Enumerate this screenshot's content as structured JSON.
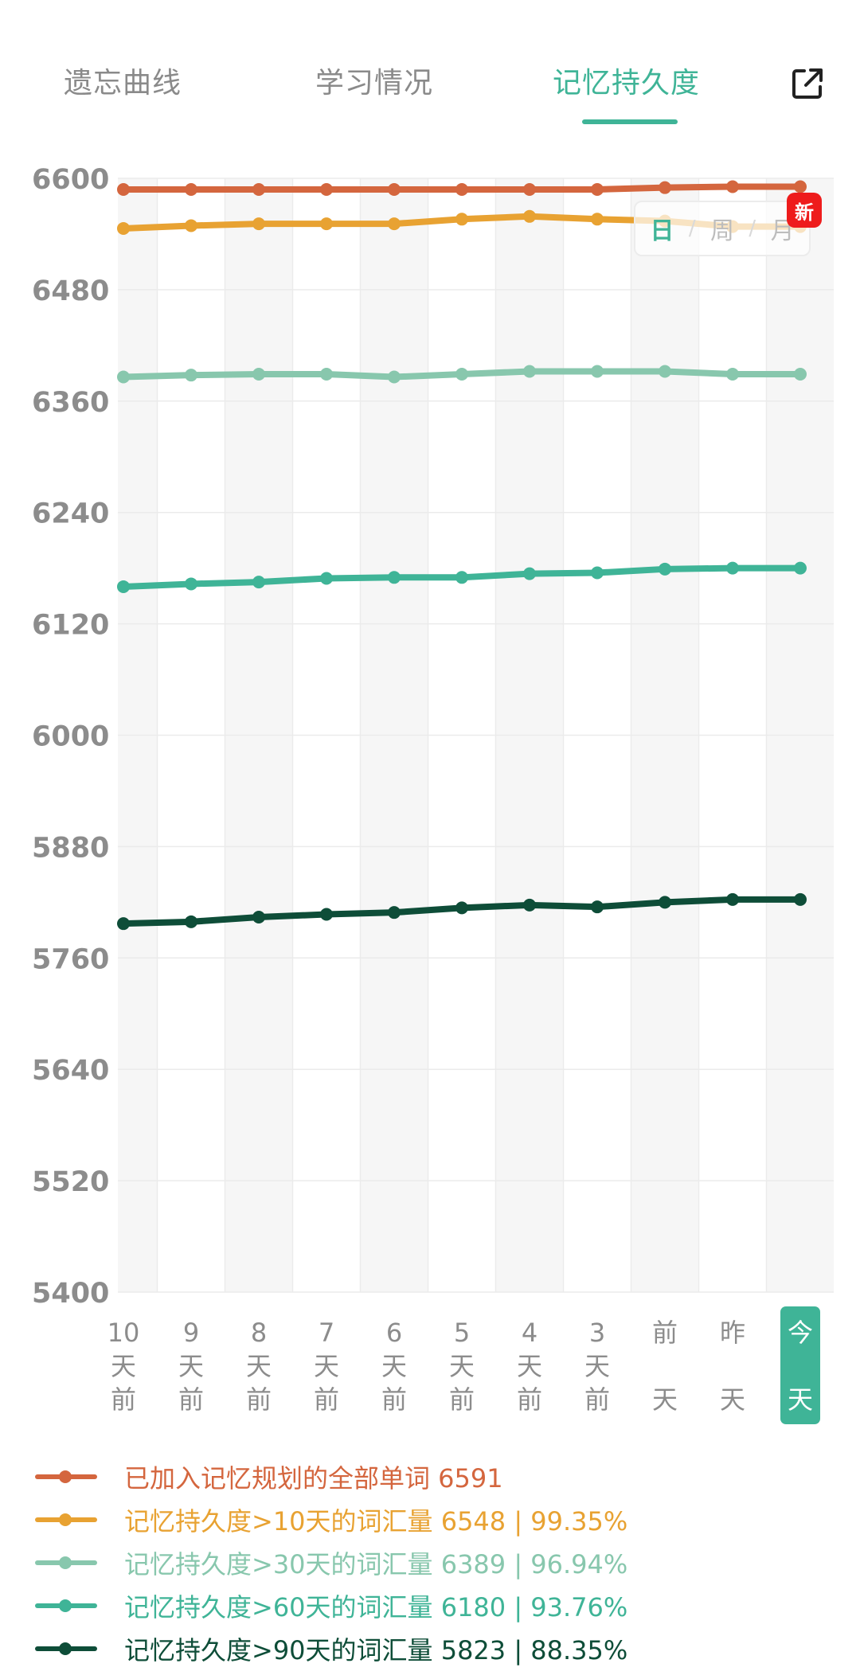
{
  "tabs": [
    {
      "label": "遗忘曲线",
      "active": false
    },
    {
      "label": "学习情况",
      "active": false
    },
    {
      "label": "记忆持久度",
      "active": true
    }
  ],
  "export_icon": "external-link-icon",
  "period_toggle": {
    "options": [
      "日",
      "周",
      "月"
    ],
    "selected": "日",
    "badge": "新"
  },
  "colors": {
    "accent": "#3fb497",
    "series": [
      "#d4663e",
      "#e8a232",
      "#88c7ad",
      "#3fb497",
      "#0e4d38"
    ],
    "today_bg": "#3fb497",
    "badge": "#ee1c1c"
  },
  "chart_data": {
    "type": "line",
    "x": [
      [
        "10",
        "天",
        "前"
      ],
      [
        "9",
        "天",
        "前"
      ],
      [
        "8",
        "天",
        "前"
      ],
      [
        "7",
        "天",
        "前"
      ],
      [
        "6",
        "天",
        "前"
      ],
      [
        "5",
        "天",
        "前"
      ],
      [
        "4",
        "天",
        "前"
      ],
      [
        "3",
        "天",
        "前"
      ],
      [
        "前",
        "",
        "天"
      ],
      [
        "昨",
        "",
        "天"
      ],
      [
        "今",
        "",
        "天"
      ]
    ],
    "highlighted_x": 10,
    "ylim": [
      5400,
      6600
    ],
    "yticks": [
      6600,
      6480,
      6360,
      6240,
      6120,
      6000,
      5880,
      5760,
      5640,
      5520,
      5400
    ],
    "grid": true,
    "legend_position": "bottom",
    "series": [
      {
        "label": "已加入记忆规划的全部单词 6591",
        "values": [
          6588,
          6588,
          6588,
          6588,
          6588,
          6588,
          6588,
          6588,
          6590,
          6591,
          6591
        ]
      },
      {
        "label": "记忆持久度>10天的词汇量 6548 | 99.35%",
        "values": [
          6546,
          6549,
          6551,
          6551,
          6551,
          6556,
          6559,
          6556,
          6554,
          6548,
          6548
        ]
      },
      {
        "label": "记忆持久度>30天的词汇量 6389 | 96.94%",
        "values": [
          6386,
          6388,
          6389,
          6389,
          6386,
          6389,
          6392,
          6392,
          6392,
          6389,
          6389
        ]
      },
      {
        "label": "记忆持久度>60天的词汇量 6180 | 93.76%",
        "values": [
          6160,
          6163,
          6165,
          6169,
          6170,
          6170,
          6174,
          6175,
          6179,
          6180,
          6180
        ]
      },
      {
        "label": "记忆持久度>90天的词汇量 5823 | 88.35%",
        "values": [
          5797,
          5799,
          5804,
          5807,
          5809,
          5814,
          5817,
          5815,
          5820,
          5823,
          5823
        ]
      }
    ]
  }
}
